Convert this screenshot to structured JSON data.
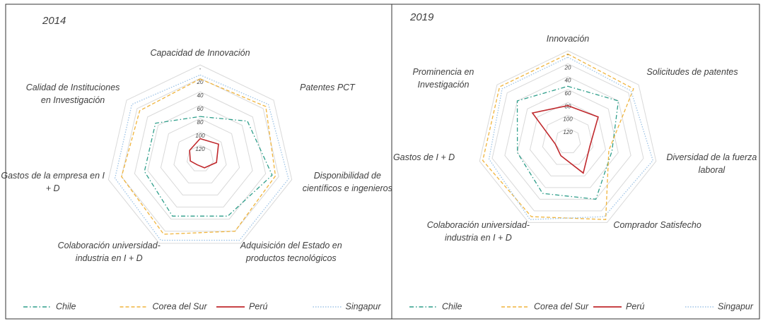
{
  "chart_data": [
    {
      "type": "radar",
      "title": "2014",
      "categories": [
        "Capacidad de Innovación",
        "Patentes PCT",
        "Disponibilidad de científicos e ingenieros",
        "Adquisición del Estado en productos tecnológicos",
        "Colaboración universidad-industria en I + D",
        "Gastos de la empresa en I + D",
        "Calidad de Instituciones en Investigación"
      ],
      "rlim": [
        140,
        0
      ],
      "rticks": [
        {
          "value": 0,
          "label": "-"
        },
        20,
        40,
        60,
        80,
        100,
        120
      ],
      "legend": "bottom",
      "series": [
        {
          "name": "Chile",
          "color": "#2e9e8a",
          "style": "dashdot",
          "values": [
            77,
            50,
            30,
            45,
            45,
            55,
            55
          ]
        },
        {
          "name": "Corea del Sur",
          "color": "#f0b43c",
          "style": "dashed",
          "values": [
            21,
            15,
            25,
            20,
            15,
            20,
            25
          ]
        },
        {
          "name": "Perú",
          "color": "#c0282c",
          "style": "solid",
          "values": [
            110,
            105,
            115,
            125,
            130,
            125,
            120
          ]
        },
        {
          "name": "Singapur",
          "color": "#9dc3e6",
          "style": "dotted",
          "values": [
            15,
            10,
            5,
            5,
            5,
            10,
            10
          ]
        }
      ]
    },
    {
      "type": "radar",
      "title": "2019",
      "categories": [
        "Innovación",
        "Solicitudes de patentes",
        "Diversidad de la fuerza laboral",
        "Comprador Satisfecho",
        "Colaboración universidad-industria en I + D",
        "Gastos de I + D",
        "Prominencia en Investigación"
      ],
      "rlim": [
        140,
        0
      ],
      "rticks": [
        {
          "value": 0,
          "label": "-"
        },
        20,
        40,
        60,
        80,
        100,
        120
      ],
      "legend": "bottom",
      "series": [
        {
          "name": "Chile",
          "color": "#2e9e8a",
          "style": "dashdot",
          "values": [
            55,
            40,
            70,
            40,
            50,
            60,
            40
          ]
        },
        {
          "name": "Corea del Sur",
          "color": "#f0b43c",
          "style": "dashed",
          "values": [
            5,
            10,
            75,
            5,
            10,
            5,
            5
          ]
        },
        {
          "name": "Perú",
          "color": "#c0282c",
          "style": "solid",
          "values": [
            85,
            80,
            105,
            85,
            115,
            120,
            70
          ]
        },
        {
          "name": "Singapur",
          "color": "#9dc3e6",
          "style": "dotted",
          "values": [
            10,
            15,
            5,
            10,
            5,
            15,
            10
          ]
        }
      ]
    }
  ]
}
